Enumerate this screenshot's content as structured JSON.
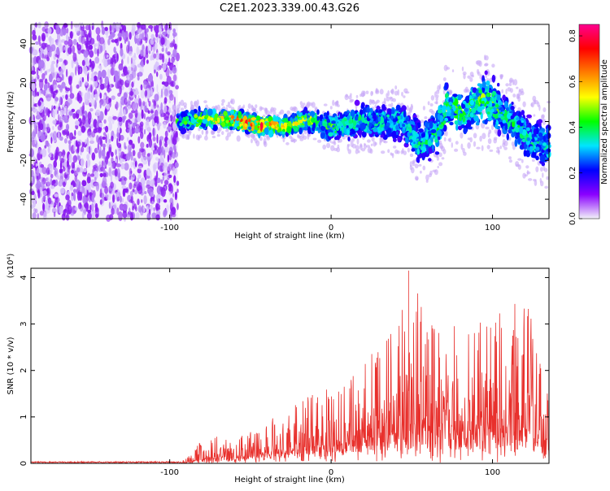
{
  "title": "C2E1.2023.339.00.43.G26",
  "chart_data": [
    {
      "type": "heatmap",
      "xlabel": "Height of straight line (km)",
      "ylabel": "Frequency (Hz)",
      "xlim": [
        -186,
        135
      ],
      "ylim": [
        -50,
        50
      ],
      "xticks": [
        -100,
        0,
        100
      ],
      "yticks": [
        -40,
        -20,
        0,
        20,
        40
      ],
      "colorbar": {
        "label": "Normalized spectral amplitude",
        "range": [
          0,
          0.85
        ],
        "ticks": [
          "0.0",
          "0.2",
          "0.4",
          "0.6",
          "0.8"
        ],
        "colormap": [
          "#f2f2f8",
          "#8a00ff",
          "#0000ff",
          "#00e5ff",
          "#00ff00",
          "#ffff00",
          "#ff7f00",
          "#ff0000",
          "#ff0090"
        ]
      },
      "noise_region_x": [
        -186,
        -95
      ],
      "signal_track": [
        {
          "x": -95,
          "y": 0,
          "spread": 6,
          "amp": 0.35
        },
        {
          "x": -80,
          "y": 1,
          "spread": 6,
          "amp": 0.45
        },
        {
          "x": -60,
          "y": 1,
          "spread": 6,
          "amp": 0.6
        },
        {
          "x": -45,
          "y": -2,
          "spread": 6,
          "amp": 0.7
        },
        {
          "x": -30,
          "y": -3,
          "spread": 6,
          "amp": 0.55
        },
        {
          "x": -15,
          "y": 1,
          "spread": 6,
          "amp": 0.45
        },
        {
          "x": 0,
          "y": -3,
          "spread": 8,
          "amp": 0.35
        },
        {
          "x": 15,
          "y": 0,
          "spread": 10,
          "amp": 0.32
        },
        {
          "x": 30,
          "y": 0,
          "spread": 10,
          "amp": 0.32
        },
        {
          "x": 45,
          "y": 0,
          "spread": 12,
          "amp": 0.3
        },
        {
          "x": 55,
          "y": -12,
          "spread": 14,
          "amp": 0.3
        },
        {
          "x": 65,
          "y": -5,
          "spread": 14,
          "amp": 0.32
        },
        {
          "x": 72,
          "y": 8,
          "spread": 14,
          "amp": 0.42
        },
        {
          "x": 82,
          "y": 5,
          "spread": 14,
          "amp": 0.35
        },
        {
          "x": 95,
          "y": 12,
          "spread": 16,
          "amp": 0.4
        },
        {
          "x": 105,
          "y": 5,
          "spread": 14,
          "amp": 0.35
        },
        {
          "x": 115,
          "y": -2,
          "spread": 14,
          "amp": 0.3
        },
        {
          "x": 125,
          "y": -10,
          "spread": 14,
          "amp": 0.3
        },
        {
          "x": 135,
          "y": -12,
          "spread": 14,
          "amp": 0.28
        }
      ]
    },
    {
      "type": "line",
      "ylabel": "SNR (10 * v/v)",
      "yscale_label": "(x10⁴)",
      "xlabel": "Height of straight line (km)",
      "xlim": [
        -186,
        135
      ],
      "ylim": [
        0,
        4.2
      ],
      "xticks": [
        -100,
        0,
        100
      ],
      "yticks": [
        0,
        1,
        2,
        3,
        4
      ],
      "color": "#e8302c",
      "envelope": {
        "x": [
          -186,
          -100,
          -90,
          -80,
          -70,
          -60,
          -50,
          -40,
          -30,
          -20,
          -10,
          0,
          10,
          20,
          30,
          40,
          50,
          60,
          70,
          80,
          90,
          100,
          110,
          120,
          135
        ],
        "peak": [
          0.03,
          0.03,
          0.1,
          0.5,
          0.6,
          0.5,
          0.7,
          0.9,
          1.1,
          1.4,
          1.6,
          1.6,
          1.8,
          2.1,
          2.6,
          3.0,
          4.1,
          3.0,
          3.1,
          3.0,
          3.1,
          3.2,
          3.4,
          3.8,
          1.5
        ],
        "floor": [
          0.0,
          0.0,
          0.0,
          0.0,
          0.02,
          0.05,
          0.1,
          0.1,
          0.15,
          0.2,
          0.2,
          0.25,
          0.25,
          0.3,
          0.3,
          0.3,
          0.3,
          0.3,
          0.3,
          0.3,
          0.3,
          0.3,
          0.3,
          0.3,
          0.2
        ]
      }
    }
  ]
}
